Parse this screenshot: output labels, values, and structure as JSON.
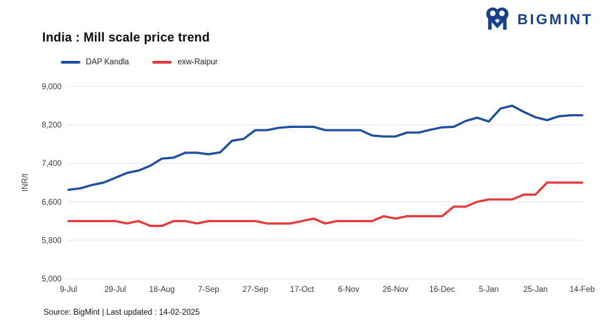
{
  "logo": {
    "brand": "BIGMINT",
    "color": "#17418f"
  },
  "title": "India : Mill scale price trend",
  "legend": {
    "items": [
      {
        "label": "DAP Kandla",
        "color": "#1d4fa1"
      },
      {
        "label": "exw-Raipur",
        "color": "#e6393b"
      }
    ]
  },
  "footer": {
    "source_note": "Source: BigMint | Last updated : 14-02-2025"
  },
  "colors": {
    "grid": "#e4e4e4",
    "axis_text": "#3c3c3c"
  },
  "chart_data": {
    "type": "line",
    "title": "India : Mill scale price trend",
    "ylabel": "INR/t",
    "xlabel": "",
    "ylim": [
      5000,
      9000
    ],
    "yticks": [
      5000,
      5800,
      6600,
      7400,
      8200,
      9000
    ],
    "grid": "horizontal",
    "legend_position": "top-left",
    "x_tick_every": 4,
    "x": [
      "9-Jul",
      "14-Jul",
      "19-Jul",
      "24-Jul",
      "29-Jul",
      "3-Aug",
      "8-Aug",
      "13-Aug",
      "18-Aug",
      "23-Aug",
      "28-Aug",
      "2-Sep",
      "7-Sep",
      "12-Sep",
      "17-Sep",
      "22-Sep",
      "27-Sep",
      "2-Oct",
      "7-Oct",
      "12-Oct",
      "17-Oct",
      "22-Oct",
      "27-Oct",
      "1-Nov",
      "6-Nov",
      "11-Nov",
      "16-Nov",
      "21-Nov",
      "26-Nov",
      "1-Dec",
      "6-Dec",
      "11-Dec",
      "16-Dec",
      "21-Dec",
      "26-Dec",
      "31-Dec",
      "5-Jan",
      "10-Jan",
      "15-Jan",
      "20-Jan",
      "25-Jan",
      "30-Jan",
      "4-Feb",
      "9-Feb",
      "14-Feb"
    ],
    "x_tick_labels": [
      "9-Jul",
      "29-Jul",
      "18-Aug",
      "7-Sep",
      "27-Sep",
      "17-Oct",
      "6-Nov",
      "26-Nov",
      "16-Dec",
      "5-Jan",
      "25-Jan",
      "14-Feb"
    ],
    "series": [
      {
        "name": "DAP Kandla",
        "color": "#1d4fa1",
        "values": [
          6850,
          6880,
          6950,
          7000,
          7100,
          7200,
          7250,
          7350,
          7500,
          7520,
          7620,
          7620,
          7590,
          7630,
          7870,
          7910,
          8090,
          8090,
          8140,
          8160,
          8160,
          8160,
          8090,
          8090,
          8090,
          8090,
          7980,
          7960,
          7960,
          8040,
          8040,
          8100,
          8150,
          8160,
          8280,
          8350,
          8270,
          8540,
          8600,
          8470,
          8360,
          8300,
          8380,
          8400,
          8400
        ]
      },
      {
        "name": "exw-Raipur",
        "color": "#e6393b",
        "values": [
          6200,
          6200,
          6200,
          6200,
          6200,
          6150,
          6200,
          6100,
          6100,
          6200,
          6200,
          6150,
          6200,
          6200,
          6200,
          6200,
          6200,
          6150,
          6150,
          6150,
          6200,
          6250,
          6150,
          6200,
          6200,
          6200,
          6200,
          6300,
          6250,
          6300,
          6300,
          6300,
          6300,
          6500,
          6500,
          6600,
          6650,
          6650,
          6650,
          6750,
          6750,
          7000,
          7000,
          7000,
          7000
        ]
      }
    ]
  }
}
